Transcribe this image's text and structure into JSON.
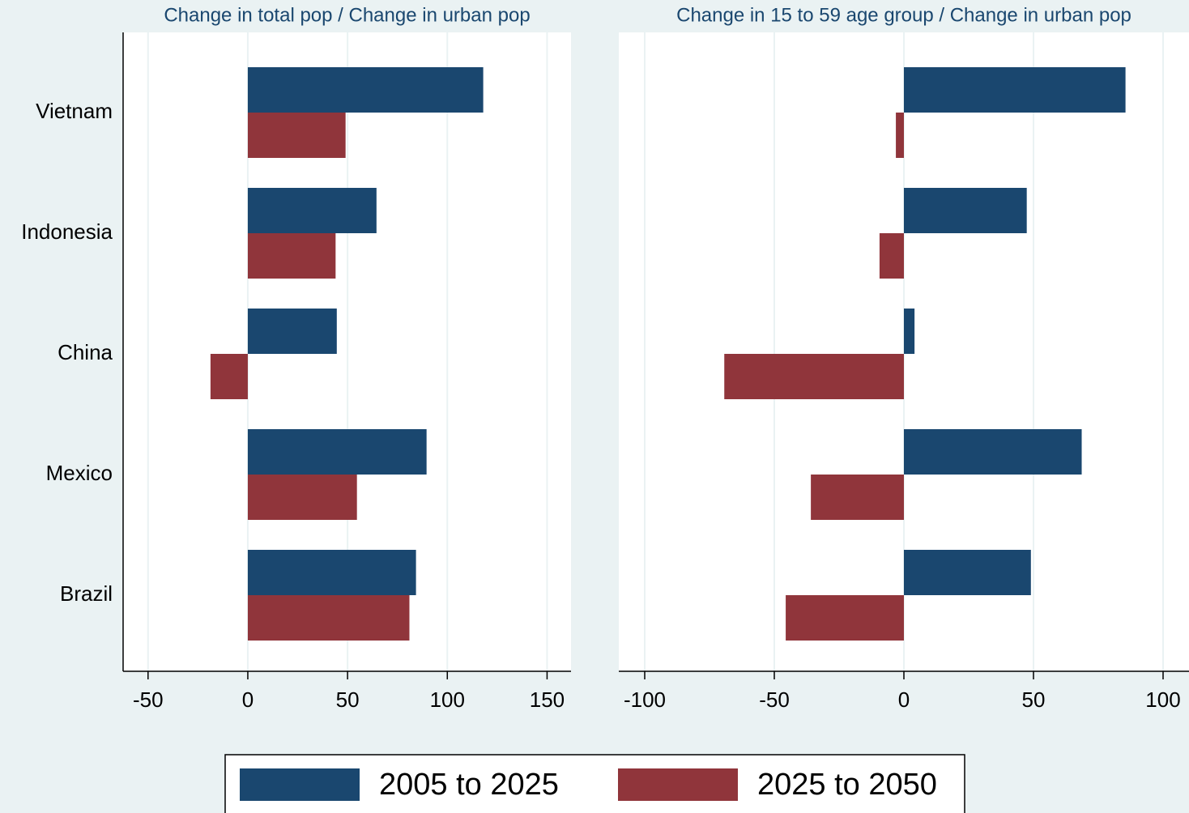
{
  "chart_data": [
    {
      "type": "barh",
      "title": "Change in total pop / Change in urban pop",
      "categories": [
        "Vietnam",
        "Indonesia",
        "China",
        "Mexico",
        "Brazil"
      ],
      "series": [
        {
          "name": "2005 to 2025",
          "color": "#1a476f",
          "values": [
            118,
            64.5,
            44.6,
            89.6,
            84.3
          ]
        },
        {
          "name": "2025 to 2050",
          "color": "#90353b",
          "values": [
            49,
            44,
            -18.7,
            54.7,
            81
          ]
        }
      ],
      "xlim": [
        -62.5,
        162
      ],
      "xticks": [
        -50,
        0,
        50,
        100,
        150
      ],
      "grid": true
    },
    {
      "type": "barh",
      "title": "Change in 15 to 59 age group / Change in urban pop",
      "categories": [
        "Vietnam",
        "Indonesia",
        "China",
        "Mexico",
        "Brazil"
      ],
      "series": [
        {
          "name": "2005 to 2025",
          "color": "#1a476f",
          "values": [
            85.5,
            47.4,
            4.1,
            68.6,
            49
          ]
        },
        {
          "name": "2025 to 2050",
          "color": "#90353b",
          "values": [
            -3.1,
            -9.4,
            -69.3,
            -35.9,
            -45.6
          ]
        }
      ],
      "xlim": [
        -110,
        110
      ],
      "xticks": [
        -100,
        -50,
        0,
        50,
        100
      ],
      "grid": true
    }
  ]
}
